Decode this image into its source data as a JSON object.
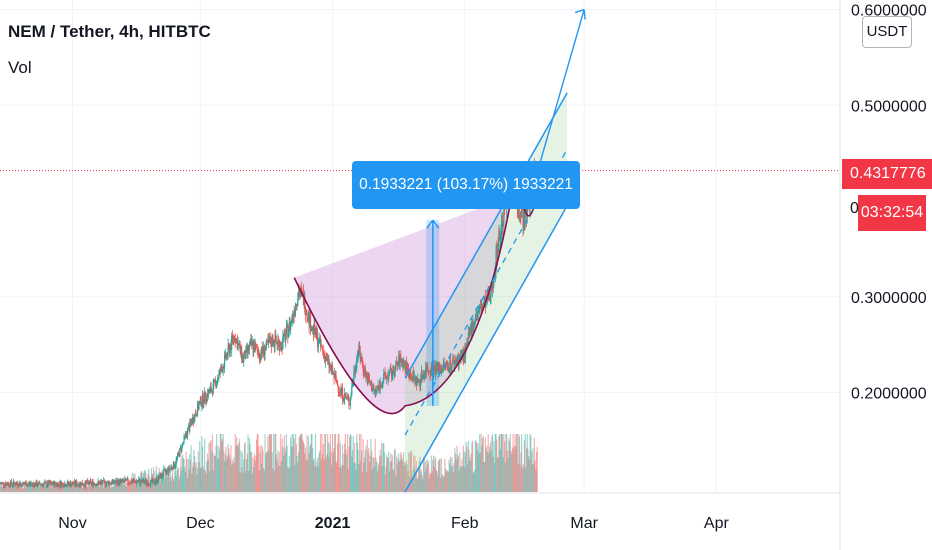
{
  "header": {
    "symbol_line": "NEM / Tether, 4h, HITBTC",
    "volume_label": "Vol",
    "currency_button": "USDT"
  },
  "price_scale": {
    "last_price": "0.4317776",
    "countdown": "03:32:54",
    "partial_label": "0",
    "last_price_color": "#f23645"
  },
  "measure_tool": {
    "label": "0.1933221 (103.17%) 1933221",
    "color": "#2196f3"
  },
  "chart_data": {
    "type": "candlestick",
    "symbol": "NEM / Tether",
    "interval": "4h",
    "exchange": "HITBTC",
    "y_axis": {
      "ticks": [
        0.2,
        0.3,
        0.5,
        0.6
      ],
      "tick_labels": [
        "0.2000000",
        "0.3000000",
        "0.5000000",
        "0.6000000"
      ],
      "range": [
        0.095,
        0.61
      ],
      "scale": "linear"
    },
    "x_axis": {
      "range": [
        "2020-10-15",
        "2021-04-30"
      ],
      "ticks": [
        "2020-11-01",
        "2020-12-01",
        "2021-01-01",
        "2021-02-01",
        "2021-03-01",
        "2021-04-01"
      ],
      "tick_labels": [
        "Nov",
        "Dec",
        "2021",
        "Feb",
        "Mar",
        "Apr"
      ]
    },
    "last_price": 0.4317776,
    "price_path": [
      [
        "2020-10-15",
        0.105
      ],
      [
        "2020-10-25",
        0.104
      ],
      [
        "2020-11-05",
        0.105
      ],
      [
        "2020-11-15",
        0.107
      ],
      [
        "2020-11-20",
        0.106
      ],
      [
        "2020-11-25",
        0.125
      ],
      [
        "2020-11-28",
        0.16
      ],
      [
        "2020-12-01",
        0.19
      ],
      [
        "2020-12-04",
        0.205
      ],
      [
        "2020-12-06",
        0.225
      ],
      [
        "2020-12-09",
        0.26
      ],
      [
        "2020-12-11",
        0.235
      ],
      [
        "2020-12-13",
        0.25
      ],
      [
        "2020-12-15",
        0.24
      ],
      [
        "2020-12-18",
        0.255
      ],
      [
        "2020-12-20",
        0.25
      ],
      [
        "2020-12-22",
        0.27
      ],
      [
        "2020-12-24",
        0.305
      ],
      [
        "2020-12-25",
        0.3
      ],
      [
        "2020-12-27",
        0.27
      ],
      [
        "2020-12-29",
        0.25
      ],
      [
        "2021-01-01",
        0.22
      ],
      [
        "2021-01-03",
        0.2
      ],
      [
        "2021-01-05",
        0.19
      ],
      [
        "2021-01-06",
        0.22
      ],
      [
        "2021-01-07",
        0.245
      ],
      [
        "2021-01-09",
        0.215
      ],
      [
        "2021-01-11",
        0.2
      ],
      [
        "2021-01-13",
        0.215
      ],
      [
        "2021-01-15",
        0.22
      ],
      [
        "2021-01-17",
        0.235
      ],
      [
        "2021-01-19",
        0.22
      ],
      [
        "2021-01-21",
        0.21
      ],
      [
        "2021-01-23",
        0.225
      ],
      [
        "2021-01-26",
        0.225
      ],
      [
        "2021-01-29",
        0.23
      ],
      [
        "2021-02-01",
        0.24
      ],
      [
        "2021-02-03",
        0.275
      ],
      [
        "2021-02-05",
        0.29
      ],
      [
        "2021-02-07",
        0.3
      ],
      [
        "2021-02-09",
        0.36
      ],
      [
        "2021-02-11",
        0.41
      ],
      [
        "2021-02-12",
        0.42
      ],
      [
        "2021-02-13",
        0.4
      ],
      [
        "2021-02-14",
        0.39
      ],
      [
        "2021-02-15",
        0.38
      ],
      [
        "2021-02-16",
        0.4
      ],
      [
        "2021-02-17",
        0.425
      ],
      [
        "2021-02-18",
        0.4317776
      ]
    ],
    "volume_path": [
      [
        "2020-10-15",
        8
      ],
      [
        "2020-11-10",
        10
      ],
      [
        "2020-11-25",
        25
      ],
      [
        "2020-12-05",
        55
      ],
      [
        "2020-12-12",
        45
      ],
      [
        "2020-12-24",
        60
      ],
      [
        "2021-01-03",
        55
      ],
      [
        "2021-01-15",
        35
      ],
      [
        "2021-01-25",
        30
      ],
      [
        "2021-02-02",
        40
      ],
      [
        "2021-02-10",
        70
      ],
      [
        "2021-02-18",
        45
      ]
    ],
    "drawings": {
      "cup_arc": {
        "start": [
          "2020-12-23",
          0.32
        ],
        "bottom": [
          "2021-01-18",
          0.186
        ],
        "end": [
          "2021-02-12",
          0.405
        ],
        "fill": "#ce93d8"
      },
      "ascending_channel": {
        "lower_start": [
          "2021-01-18",
          0.096
        ],
        "lower_end": [
          "2021-02-25",
          0.395
        ],
        "upper_start": [
          "2021-01-18",
          0.215
        ],
        "upper_end": [
          "2021-02-25",
          0.513
        ],
        "fill": "#a5d6a7",
        "color": "#2196f3"
      },
      "measure_range": {
        "from": [
          "2021-01-23",
          0.186
        ],
        "to": [
          "2021-01-26",
          0.38
        ],
        "change": 0.1933221,
        "change_percent": 103.17
      },
      "projection_arrow": {
        "from": [
          "2021-02-18",
          0.43
        ],
        "to": [
          "2021-03-01",
          0.6
        ]
      },
      "handle_arc": {
        "from": [
          "2021-02-14",
          0.39
        ],
        "to": [
          "2021-02-18",
          0.41
        ]
      }
    }
  }
}
